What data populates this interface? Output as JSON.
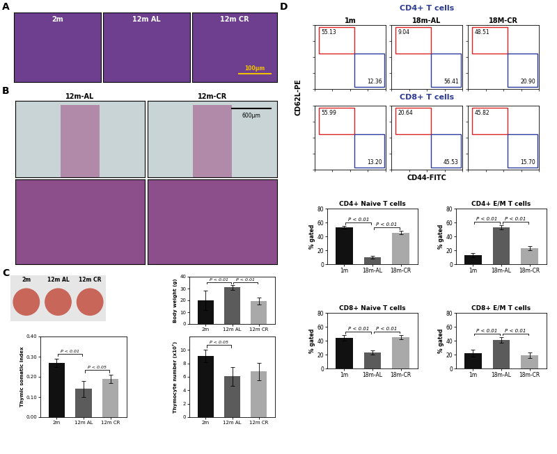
{
  "panels": {
    "A": {
      "label": "A",
      "images": [
        "2m",
        "12m AL",
        "12m CR"
      ],
      "scale_bar": "100μm"
    },
    "B": {
      "label": "B",
      "images": [
        "12m-AL",
        "12m-CR"
      ],
      "scale_bar": "600μm"
    },
    "C": {
      "label": "C",
      "images": [
        "2m",
        "12m AL",
        "12m CR"
      ]
    },
    "D": {
      "label": "D",
      "flow": {
        "rows": [
          {
            "title": "CD4+ T cells",
            "gates": [
              [
                "55.13",
                "12.36"
              ],
              [
                "9.04",
                "56.41"
              ],
              [
                "48.51",
                "20.90"
              ]
            ]
          },
          {
            "title": "CD8+ T cells",
            "gates": [
              [
                "55.99",
                "13.20"
              ],
              [
                "20.64",
                "45.53"
              ],
              [
                "45.82",
                "15.70"
              ]
            ]
          }
        ],
        "columns": [
          "1m",
          "18m-AL",
          "18M-CR"
        ],
        "xlabel": "CD44-FITC",
        "ylabel": "CD62L-PE",
        "log": true,
        "xlim": [
          1,
          10000
        ],
        "ylim": [
          1,
          10000
        ],
        "xticks": [
          1,
          10,
          100,
          1000,
          10000
        ],
        "yticks": [
          1,
          10,
          100,
          1000,
          10000
        ],
        "tick_labels": false
      }
    }
  },
  "chart_data": [
    {
      "type": "bar",
      "ylabel": "Body weight (g)",
      "categories": [
        "2m",
        "12m AL",
        "12m CR"
      ],
      "values": [
        20,
        31,
        19.5
      ],
      "errors": [
        8,
        2,
        3
      ],
      "colors": [
        "#111111",
        "#5b5b5b",
        "#a9a9a9"
      ],
      "ylim": [
        0,
        40
      ],
      "yticks": [
        0,
        10,
        20,
        30,
        40
      ],
      "annotations": [
        {
          "text": "P < 0.01",
          "between": [
            0,
            1
          ]
        },
        {
          "text": "P < 0.01",
          "between": [
            1,
            2
          ]
        }
      ]
    },
    {
      "type": "bar",
      "ylabel": "Thymic somatic index",
      "categories": [
        "2m",
        "12m AL",
        "12m CR"
      ],
      "values": [
        0.27,
        0.14,
        0.19
      ],
      "errors": [
        0.02,
        0.04,
        0.02
      ],
      "colors": [
        "#111111",
        "#5b5b5b",
        "#a9a9a9"
      ],
      "ylim": [
        0,
        0.4
      ],
      "yticks": [
        {
          "value": 0,
          "label": "0.00"
        },
        {
          "value": 0.1,
          "label": "0.10"
        },
        {
          "value": 0.2,
          "label": "0.20"
        },
        {
          "value": 0.3,
          "label": "0.30"
        },
        {
          "value": 0.4,
          "label": "0.40"
        }
      ],
      "annotations": [
        {
          "text": "P < 0.01",
          "between": [
            0,
            1
          ]
        },
        {
          "text": "P < 0.05",
          "between": [
            1,
            2
          ]
        }
      ]
    },
    {
      "type": "bar",
      "ylabel": "Thymocyte number (x10⁷)",
      "categories": [
        "2m",
        "12m AL",
        "12m CR"
      ],
      "values": [
        9.1,
        6.1,
        6.8
      ],
      "errors": [
        0.9,
        1.4,
        1.3
      ],
      "colors": [
        "#111111",
        "#5b5b5b",
        "#a9a9a9"
      ],
      "ylim": [
        0,
        12
      ],
      "yticks": [
        0,
        2,
        4,
        6,
        8,
        10
      ],
      "annotations": [
        {
          "text": "P < 0.05",
          "between": [
            0,
            1
          ]
        }
      ]
    },
    {
      "type": "bar",
      "title": "CD4+ Naive T cells",
      "ylabel": "% gated",
      "categories": [
        "1m",
        "18m-AL",
        "18m-CR"
      ],
      "values": [
        53,
        10.5,
        45.5
      ],
      "errors": [
        2,
        2,
        2.5
      ],
      "colors": [
        "#111111",
        "#5b5b5b",
        "#a9a9a9"
      ],
      "ylim": [
        0,
        80
      ],
      "yticks": [
        0,
        20,
        40,
        60,
        80
      ],
      "annotations": [
        {
          "text": "P < 0.01",
          "between": [
            0,
            1
          ]
        },
        {
          "text": "P < 0.01",
          "between": [
            1,
            2
          ]
        }
      ]
    },
    {
      "type": "bar",
      "title": "CD4+ E/M T cells",
      "ylabel": "% gated",
      "categories": [
        "1m",
        "18m-AL",
        "18m-CR"
      ],
      "values": [
        13,
        53,
        23
      ],
      "errors": [
        3,
        3,
        3
      ],
      "colors": [
        "#111111",
        "#5b5b5b",
        "#a9a9a9"
      ],
      "ylim": [
        0,
        80
      ],
      "yticks": [
        0,
        20,
        40,
        60,
        80
      ],
      "annotations": [
        {
          "text": "P < 0.01",
          "between": [
            0,
            1
          ]
        },
        {
          "text": "P < 0.01",
          "between": [
            1,
            2
          ]
        }
      ]
    },
    {
      "type": "bar",
      "title": "CD8+ Naive T cells",
      "ylabel": "% gated",
      "categories": [
        "1m",
        "18m-AL",
        "18m-CR"
      ],
      "values": [
        44,
        23,
        45.5
      ],
      "errors": [
        4,
        3,
        3
      ],
      "colors": [
        "#111111",
        "#5b5b5b",
        "#a9a9a9"
      ],
      "ylim": [
        0,
        80
      ],
      "yticks": [
        0,
        20,
        40,
        60,
        80
      ],
      "annotations": [
        {
          "text": "P < 0.01",
          "between": [
            0,
            1
          ]
        },
        {
          "text": "P < 0.01",
          "between": [
            1,
            2
          ]
        }
      ]
    },
    {
      "type": "bar",
      "title": "CD8+ E/M T cells",
      "ylabel": "% gated",
      "categories": [
        "1m",
        "18m-AL",
        "18m-CR"
      ],
      "values": [
        22,
        41.5,
        19
      ],
      "errors": [
        5,
        4,
        4
      ],
      "colors": [
        "#111111",
        "#5b5b5b",
        "#a9a9a9"
      ],
      "ylim": [
        0,
        80
      ],
      "yticks": [
        0,
        20,
        40,
        60,
        80
      ],
      "annotations": [
        {
          "text": "P < 0.01",
          "between": [
            0,
            1
          ]
        },
        {
          "text": "P < 0.01",
          "between": [
            1,
            2
          ]
        }
      ]
    }
  ]
}
